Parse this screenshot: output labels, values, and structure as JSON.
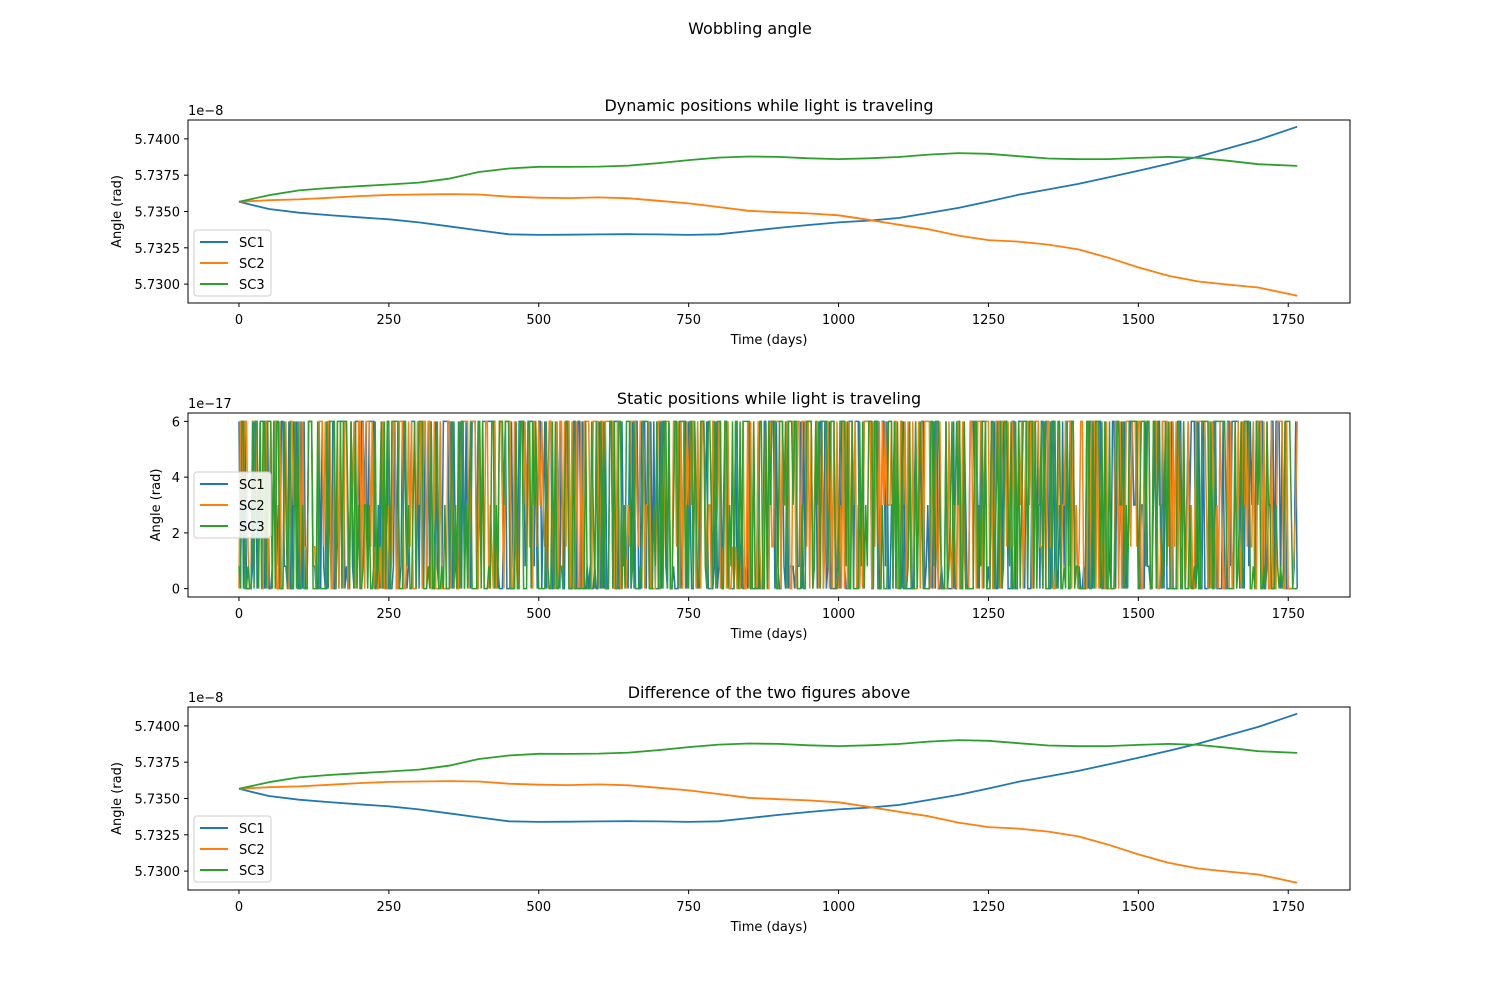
{
  "figure": {
    "title": "Wobbling angle"
  },
  "chart_data": [
    {
      "type": "line",
      "title": "Dynamic positions while light is traveling",
      "xlabel": "Time (days)",
      "ylabel": "Angle (rad)",
      "y_offset_label": "1e−8",
      "xlim": [
        -85,
        1853
      ],
      "ylim": [
        5.7287,
        5.7413
      ],
      "xticks": [
        0,
        250,
        500,
        750,
        1000,
        1250,
        1500,
        1750
      ],
      "xtick_labels": [
        "0",
        "250",
        "500",
        "750",
        "1000",
        "1250",
        "1500",
        "1750"
      ],
      "yticks": [
        5.73,
        5.7325,
        5.735,
        5.7375,
        5.74
      ],
      "ytick_labels": [
        "5.7300",
        "5.7325",
        "5.7350",
        "5.7375",
        "5.7400"
      ],
      "legend_position": "lower-left",
      "series": [
        {
          "name": "SC1",
          "color": "#1f77b4",
          "x": [
            0,
            50,
            100,
            150,
            200,
            250,
            300,
            350,
            400,
            450,
            500,
            550,
            600,
            650,
            700,
            750,
            800,
            850,
            900,
            950,
            1000,
            1050,
            1100,
            1150,
            1200,
            1250,
            1300,
            1350,
            1400,
            1450,
            1500,
            1550,
            1600,
            1650,
            1700,
            1765
          ],
          "y": [
            5.73567,
            5.73517,
            5.73492,
            5.73475,
            5.7346,
            5.73446,
            5.73425,
            5.73398,
            5.7337,
            5.73343,
            5.73339,
            5.7334,
            5.73342,
            5.73344,
            5.73342,
            5.73339,
            5.73343,
            5.73365,
            5.73387,
            5.73407,
            5.73425,
            5.73437,
            5.73455,
            5.7349,
            5.73525,
            5.73569,
            5.73615,
            5.73652,
            5.7369,
            5.73735,
            5.7378,
            5.73828,
            5.73878,
            5.73935,
            5.73993,
            5.74084
          ]
        },
        {
          "name": "SC2",
          "color": "#ff7f0e",
          "x": [
            0,
            50,
            100,
            150,
            200,
            250,
            300,
            350,
            400,
            450,
            500,
            550,
            600,
            650,
            700,
            750,
            800,
            850,
            900,
            950,
            1000,
            1050,
            1100,
            1150,
            1200,
            1250,
            1300,
            1350,
            1400,
            1450,
            1500,
            1550,
            1600,
            1650,
            1700,
            1765
          ],
          "y": [
            5.73567,
            5.73578,
            5.73583,
            5.73594,
            5.73606,
            5.73614,
            5.73617,
            5.7362,
            5.73617,
            5.73602,
            5.73595,
            5.73592,
            5.73597,
            5.73591,
            5.73574,
            5.73556,
            5.73531,
            5.73505,
            5.73495,
            5.73487,
            5.73474,
            5.73443,
            5.73409,
            5.73378,
            5.73334,
            5.73303,
            5.73293,
            5.73272,
            5.73239,
            5.73182,
            5.73115,
            5.73057,
            5.73018,
            5.72997,
            5.72977,
            5.7292
          ]
        },
        {
          "name": "SC3",
          "color": "#2ca02c",
          "x": [
            0,
            50,
            100,
            150,
            200,
            250,
            300,
            350,
            400,
            450,
            500,
            550,
            600,
            650,
            700,
            750,
            800,
            850,
            900,
            950,
            1000,
            1050,
            1100,
            1150,
            1200,
            1250,
            1300,
            1350,
            1400,
            1450,
            1500,
            1550,
            1600,
            1650,
            1700,
            1765
          ],
          "y": [
            5.73567,
            5.73612,
            5.73645,
            5.73662,
            5.73674,
            5.73686,
            5.73699,
            5.73726,
            5.73772,
            5.73796,
            5.73808,
            5.73807,
            5.73809,
            5.73816,
            5.73833,
            5.73854,
            5.73871,
            5.73879,
            5.73876,
            5.73866,
            5.73861,
            5.73866,
            5.73875,
            5.73892,
            5.73902,
            5.73897,
            5.73881,
            5.73865,
            5.7386,
            5.73861,
            5.73869,
            5.73876,
            5.73869,
            5.73849,
            5.73826,
            5.73814
          ]
        }
      ]
    },
    {
      "type": "line",
      "title": "Static positions while light is traveling",
      "xlabel": "Time (days)",
      "ylabel": "Angle (rad)",
      "y_offset_label": "1e−17",
      "xlim": [
        -85,
        1853
      ],
      "ylim": [
        -0.3,
        6.3
      ],
      "xticks": [
        0,
        250,
        500,
        750,
        1000,
        1250,
        1500,
        1750
      ],
      "xtick_labels": [
        "0",
        "250",
        "500",
        "750",
        "1000",
        "1250",
        "1500",
        "1750"
      ],
      "yticks": [
        0,
        2,
        4,
        6
      ],
      "ytick_labels": [
        "0",
        "2",
        "4",
        "6"
      ],
      "legend_position": "center-left",
      "value_levels": [
        0,
        0.8,
        1.5,
        3,
        6
      ],
      "noise": true,
      "x_range": [
        0,
        1765
      ],
      "series": [
        {
          "name": "SC1",
          "color": "#1f77b4"
        },
        {
          "name": "SC2",
          "color": "#ff7f0e"
        },
        {
          "name": "SC3",
          "color": "#2ca02c"
        }
      ]
    },
    {
      "type": "line",
      "title": "Difference of the two figures above",
      "xlabel": "Time (days)",
      "ylabel": "Angle (rad)",
      "y_offset_label": "1e−8",
      "xlim": [
        -85,
        1853
      ],
      "ylim": [
        5.7287,
        5.7413
      ],
      "xticks": [
        0,
        250,
        500,
        750,
        1000,
        1250,
        1500,
        1750
      ],
      "xtick_labels": [
        "0",
        "250",
        "500",
        "750",
        "1000",
        "1250",
        "1500",
        "1750"
      ],
      "yticks": [
        5.73,
        5.7325,
        5.735,
        5.7375,
        5.74
      ],
      "ytick_labels": [
        "5.7300",
        "5.7325",
        "5.7350",
        "5.7375",
        "5.7400"
      ],
      "legend_position": "lower-left",
      "series": [
        {
          "name": "SC1",
          "color": "#1f77b4",
          "x": [
            0,
            50,
            100,
            150,
            200,
            250,
            300,
            350,
            400,
            450,
            500,
            550,
            600,
            650,
            700,
            750,
            800,
            850,
            900,
            950,
            1000,
            1050,
            1100,
            1150,
            1200,
            1250,
            1300,
            1350,
            1400,
            1450,
            1500,
            1550,
            1600,
            1650,
            1700,
            1765
          ],
          "y": [
            5.73567,
            5.73517,
            5.73492,
            5.73475,
            5.7346,
            5.73446,
            5.73425,
            5.73398,
            5.7337,
            5.73343,
            5.73339,
            5.7334,
            5.73342,
            5.73344,
            5.73342,
            5.73339,
            5.73343,
            5.73365,
            5.73387,
            5.73407,
            5.73425,
            5.73437,
            5.73455,
            5.7349,
            5.73525,
            5.73569,
            5.73615,
            5.73652,
            5.7369,
            5.73735,
            5.7378,
            5.73828,
            5.73878,
            5.73935,
            5.73993,
            5.74084
          ]
        },
        {
          "name": "SC2",
          "color": "#ff7f0e",
          "x": [
            0,
            50,
            100,
            150,
            200,
            250,
            300,
            350,
            400,
            450,
            500,
            550,
            600,
            650,
            700,
            750,
            800,
            850,
            900,
            950,
            1000,
            1050,
            1100,
            1150,
            1200,
            1250,
            1300,
            1350,
            1400,
            1450,
            1500,
            1550,
            1600,
            1650,
            1700,
            1765
          ],
          "y": [
            5.73567,
            5.73578,
            5.73583,
            5.73594,
            5.73606,
            5.73614,
            5.73617,
            5.7362,
            5.73617,
            5.73602,
            5.73595,
            5.73592,
            5.73597,
            5.73591,
            5.73574,
            5.73556,
            5.73531,
            5.73505,
            5.73495,
            5.73487,
            5.73474,
            5.73443,
            5.73409,
            5.73378,
            5.73334,
            5.73303,
            5.73293,
            5.73272,
            5.73239,
            5.73182,
            5.73115,
            5.73057,
            5.73018,
            5.72997,
            5.72977,
            5.7292
          ]
        },
        {
          "name": "SC3",
          "color": "#2ca02c",
          "x": [
            0,
            50,
            100,
            150,
            200,
            250,
            300,
            350,
            400,
            450,
            500,
            550,
            600,
            650,
            700,
            750,
            800,
            850,
            900,
            950,
            1000,
            1050,
            1100,
            1150,
            1200,
            1250,
            1300,
            1350,
            1400,
            1450,
            1500,
            1550,
            1600,
            1650,
            1700,
            1765
          ],
          "y": [
            5.73567,
            5.73612,
            5.73645,
            5.73662,
            5.73674,
            5.73686,
            5.73699,
            5.73726,
            5.73772,
            5.73796,
            5.73808,
            5.73807,
            5.73809,
            5.73816,
            5.73833,
            5.73854,
            5.73871,
            5.73879,
            5.73876,
            5.73866,
            5.73861,
            5.73866,
            5.73875,
            5.73892,
            5.73902,
            5.73897,
            5.73881,
            5.73865,
            5.7386,
            5.73861,
            5.73869,
            5.73876,
            5.73869,
            5.73849,
            5.73826,
            5.73814
          ]
        }
      ]
    }
  ]
}
